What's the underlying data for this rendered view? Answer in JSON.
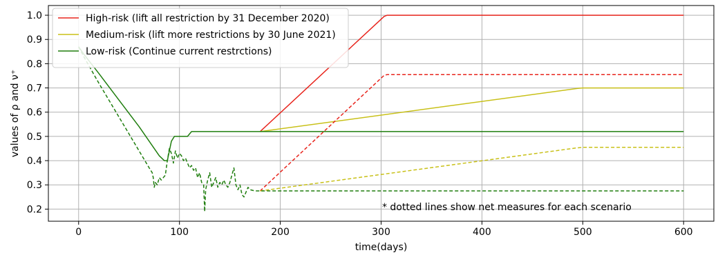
{
  "chart_data": {
    "type": "line",
    "title": "",
    "xlabel": "time(days)",
    "ylabel": "values of ρ and ν⁺",
    "xlim": [
      -30,
      630
    ],
    "ylim": [
      0.15,
      1.04
    ],
    "xticks": [
      0,
      100,
      200,
      300,
      400,
      500,
      600
    ],
    "yticks": [
      0.2,
      0.3,
      0.4,
      0.5,
      0.6,
      0.7,
      0.8,
      0.9,
      1.0
    ],
    "grid": true,
    "legend_position": "top-left",
    "colors": {
      "high": "#e8231b",
      "medium": "#c8c017",
      "low": "#1e7d0d"
    },
    "series": [
      {
        "name": "High-risk (lift all restriction by 31 December 2020)",
        "key": "high",
        "style": "solid",
        "x": [
          180,
          303,
          306,
          600
        ],
        "y": [
          0.52,
          0.995,
          1.0,
          1.0
        ]
      },
      {
        "name": "Medium-risk (lift more restrictions by 30 June 2021)",
        "key": "medium",
        "style": "solid",
        "x": [
          180,
          495,
          500,
          600
        ],
        "y": [
          0.52,
          0.698,
          0.7,
          0.7
        ]
      },
      {
        "name": "Low-risk (Continue current restrctions)",
        "key": "low",
        "style": "solid",
        "x": [
          0,
          5,
          20,
          40,
          60,
          80,
          85,
          88,
          90,
          92,
          95,
          100,
          105,
          108,
          110,
          112,
          120,
          150,
          180,
          600
        ],
        "y": [
          0.87,
          0.84,
          0.76,
          0.65,
          0.54,
          0.42,
          0.4,
          0.4,
          0.44,
          0.48,
          0.5,
          0.5,
          0.5,
          0.5,
          0.51,
          0.52,
          0.52,
          0.52,
          0.52,
          0.52
        ]
      },
      {
        "name": "",
        "key": "high",
        "style": "dashed",
        "x": [
          180,
          303,
          306,
          600
        ],
        "y": [
          0.275,
          0.752,
          0.755,
          0.755
        ]
      },
      {
        "name": "",
        "key": "medium",
        "style": "dashed",
        "x": [
          180,
          493,
          500,
          600
        ],
        "y": [
          0.275,
          0.452,
          0.455,
          0.455
        ]
      },
      {
        "name": "",
        "key": "low",
        "style": "dashed",
        "x": [
          0,
          5,
          20,
          40,
          60,
          70,
          73,
          74,
          75,
          76,
          78,
          80,
          82,
          84,
          86,
          88,
          90,
          92,
          94,
          96,
          98,
          100,
          102,
          104,
          106,
          108,
          110,
          112,
          114,
          116,
          118,
          120,
          122,
          124,
          125,
          126,
          128,
          130,
          132,
          134,
          136,
          138,
          140,
          142,
          144,
          146,
          148,
          150,
          152,
          154,
          156,
          158,
          160,
          162,
          164,
          166,
          168,
          170,
          175,
          180,
          600
        ],
        "y": [
          0.87,
          0.83,
          0.72,
          0.58,
          0.44,
          0.37,
          0.35,
          0.33,
          0.29,
          0.31,
          0.3,
          0.33,
          0.32,
          0.33,
          0.34,
          0.4,
          0.45,
          0.43,
          0.39,
          0.44,
          0.41,
          0.43,
          0.42,
          0.4,
          0.41,
          0.39,
          0.37,
          0.38,
          0.36,
          0.37,
          0.33,
          0.35,
          0.31,
          0.3,
          0.19,
          0.28,
          0.32,
          0.35,
          0.29,
          0.31,
          0.33,
          0.29,
          0.31,
          0.3,
          0.32,
          0.3,
          0.29,
          0.31,
          0.34,
          0.37,
          0.3,
          0.28,
          0.3,
          0.26,
          0.25,
          0.27,
          0.29,
          0.28,
          0.275,
          0.275,
          0.275
        ]
      }
    ],
    "annotations": [
      {
        "text": "* dotted lines show net measures for each scenario",
        "x": 301,
        "y": 0.21
      }
    ]
  }
}
